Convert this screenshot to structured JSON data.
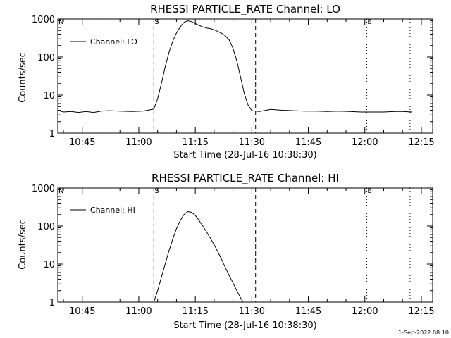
{
  "footer_timestamp": "1-Sep-2022 08:10",
  "chart_data": [
    {
      "type": "line",
      "title": "RHESSI PARTICLE_RATE Channel: LO",
      "xlabel": "Start Time (28-Jul-16 10:38:30)",
      "ylabel": "Counts/sec",
      "y_scale": "log",
      "ylim": [
        1,
        1000
      ],
      "xlim": [
        "10:38:30",
        "12:18:00"
      ],
      "x_ticks": [
        "10:45",
        "11:00",
        "11:15",
        "11:30",
        "11:45",
        "12:00",
        "12:15"
      ],
      "y_ticks": [
        "1",
        "10",
        "100",
        "1000"
      ],
      "legend": {
        "label": "Channel: LO",
        "placement": "top-left"
      },
      "markers": [
        {
          "label": "N",
          "time": "10:38:30",
          "style": "dotted"
        },
        {
          "label": "",
          "time": "10:50:00",
          "style": "dotted"
        },
        {
          "label": "S",
          "time": "11:04:00",
          "style": "dashed"
        },
        {
          "label": "",
          "time": "11:31:00",
          "style": "dashed"
        },
        {
          "label": "E",
          "time": "12:00:30",
          "style": "dotted"
        },
        {
          "label": "",
          "time": "12:12:00",
          "style": "dotted"
        }
      ],
      "series": [
        {
          "name": "Channel: LO",
          "points": [
            [
              "10:38:30",
              4.0
            ],
            [
              "10:40:00",
              3.6
            ],
            [
              "10:42:00",
              3.7
            ],
            [
              "10:44:00",
              3.5
            ],
            [
              "10:46:00",
              3.7
            ],
            [
              "10:48:00",
              3.5
            ],
            [
              "10:50:00",
              3.8
            ],
            [
              "10:52:00",
              3.9
            ],
            [
              "10:55:00",
              3.8
            ],
            [
              "10:58:00",
              3.7
            ],
            [
              "11:01:00",
              3.8
            ],
            [
              "11:03:00",
              4.1
            ],
            [
              "11:04:00",
              4.3
            ],
            [
              "11:05:00",
              8.0
            ],
            [
              "11:06:00",
              20.0
            ],
            [
              "11:07:00",
              55.0
            ],
            [
              "11:08:00",
              130.0
            ],
            [
              "11:09:00",
              260.0
            ],
            [
              "11:10:00",
              430.0
            ],
            [
              "11:11:00",
              620.0
            ],
            [
              "11:12:00",
              820.0
            ],
            [
              "11:13:00",
              900.0
            ],
            [
              "11:14:00",
              850.0
            ],
            [
              "11:15:00",
              760.0
            ],
            [
              "11:16:00",
              680.0
            ],
            [
              "11:17:00",
              620.0
            ],
            [
              "11:18:00",
              580.0
            ],
            [
              "11:19:00",
              560.0
            ],
            [
              "11:20:00",
              520.0
            ],
            [
              "11:21:00",
              470.0
            ],
            [
              "11:22:00",
              420.0
            ],
            [
              "11:23:00",
              360.0
            ],
            [
              "11:24:00",
              280.0
            ],
            [
              "11:25:00",
              170.0
            ],
            [
              "11:26:00",
              80.0
            ],
            [
              "11:27:00",
              30.0
            ],
            [
              "11:28:00",
              11.0
            ],
            [
              "11:29:00",
              5.5
            ],
            [
              "11:30:00",
              3.9
            ],
            [
              "11:32:00",
              3.7
            ],
            [
              "11:35:00",
              4.2
            ],
            [
              "11:38:00",
              4.0
            ],
            [
              "11:41:00",
              3.9
            ],
            [
              "11:44:00",
              3.8
            ],
            [
              "11:47:00",
              3.8
            ],
            [
              "11:50:00",
              3.7
            ],
            [
              "11:53:00",
              3.8
            ],
            [
              "11:56:00",
              3.7
            ],
            [
              "11:59:00",
              3.6
            ],
            [
              "12:02:00",
              3.6
            ],
            [
              "12:05:00",
              3.6
            ],
            [
              "12:08:00",
              3.7
            ],
            [
              "12:10:00",
              3.7
            ],
            [
              "12:12:30",
              3.6
            ]
          ]
        }
      ]
    },
    {
      "type": "line",
      "title": "RHESSI PARTICLE_RATE Channel: HI",
      "xlabel": "Start Time (28-Jul-16 10:38:30)",
      "ylabel": "Counts/sec",
      "y_scale": "log",
      "ylim": [
        1,
        1000
      ],
      "xlim": [
        "10:38:30",
        "12:18:00"
      ],
      "x_ticks": [
        "10:45",
        "11:00",
        "11:15",
        "11:30",
        "11:45",
        "12:00",
        "12:15"
      ],
      "y_ticks": [
        "1",
        "10",
        "100",
        "1000"
      ],
      "legend": {
        "label": "Channel: HI",
        "placement": "top-left"
      },
      "markers": [
        {
          "label": "N",
          "time": "10:38:30",
          "style": "dotted"
        },
        {
          "label": "",
          "time": "10:50:00",
          "style": "dotted"
        },
        {
          "label": "S",
          "time": "11:04:00",
          "style": "dashed"
        },
        {
          "label": "",
          "time": "11:31:00",
          "style": "dashed"
        },
        {
          "label": "E",
          "time": "12:00:30",
          "style": "dotted"
        },
        {
          "label": "",
          "time": "12:12:00",
          "style": "dotted"
        }
      ],
      "series": [
        {
          "name": "Channel: HI",
          "points": [
            [
              "11:04:00",
              1.0
            ],
            [
              "11:05:00",
              2.0
            ],
            [
              "11:06:00",
              4.5
            ],
            [
              "11:07:00",
              10.0
            ],
            [
              "11:08:00",
              22.0
            ],
            [
              "11:09:00",
              45.0
            ],
            [
              "11:10:00",
              85.0
            ],
            [
              "11:11:00",
              140.0
            ],
            [
              "11:12:00",
              200.0
            ],
            [
              "11:13:00",
              240.0
            ],
            [
              "11:14:00",
              230.0
            ],
            [
              "11:15:00",
              190.0
            ],
            [
              "11:16:00",
              140.0
            ],
            [
              "11:17:00",
              100.0
            ],
            [
              "11:18:00",
              70.0
            ],
            [
              "11:19:00",
              48.0
            ],
            [
              "11:20:00",
              32.0
            ],
            [
              "11:21:00",
              21.0
            ],
            [
              "11:22:00",
              13.0
            ],
            [
              "11:23:00",
              8.0
            ],
            [
              "11:24:00",
              5.0
            ],
            [
              "11:25:00",
              3.2
            ],
            [
              "11:26:00",
              2.0
            ],
            [
              "11:27:00",
              1.3
            ],
            [
              "11:27:40",
              1.0
            ]
          ]
        }
      ]
    }
  ]
}
